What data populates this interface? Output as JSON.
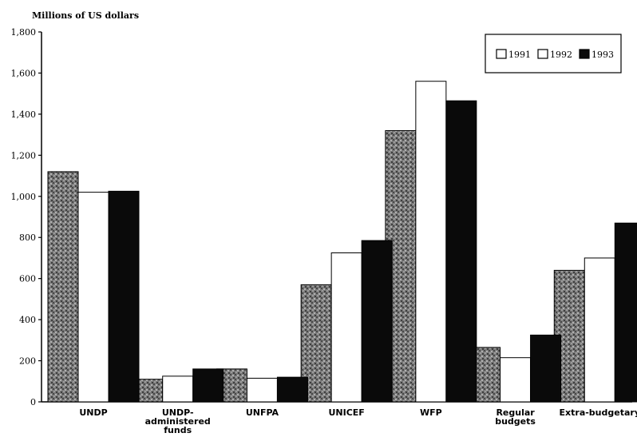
{
  "chart_data": {
    "type": "bar",
    "ylabel": "Millions of US dollars",
    "ylim": [
      0,
      1800
    ],
    "yticks": [
      0,
      200,
      400,
      600,
      800,
      1000,
      1200,
      1400,
      1600,
      1800
    ],
    "ytick_labels": [
      "0",
      "200",
      "400",
      "600",
      "800",
      "1,000",
      "1,200",
      "1,400",
      "1,600",
      "1,800"
    ],
    "categories": [
      [
        "UNDP"
      ],
      [
        "UNDP-",
        "administered",
        "funds"
      ],
      [
        "UNFPA"
      ],
      [
        "UNICEF"
      ],
      [
        "WFP"
      ],
      [
        "Regular",
        "budgets"
      ],
      [
        "Extra-budgetary"
      ]
    ],
    "series": [
      {
        "name": "1991",
        "pattern": "stipple",
        "values": [
          1120,
          110,
          160,
          570,
          1320,
          265,
          640
        ]
      },
      {
        "name": "1992",
        "pattern": "white",
        "values": [
          1020,
          125,
          115,
          725,
          1560,
          215,
          700
        ]
      },
      {
        "name": "1993",
        "pattern": "black",
        "values": [
          1025,
          160,
          120,
          785,
          1465,
          325,
          870
        ]
      }
    ],
    "legend_position": "top-right",
    "grid": false
  },
  "colors": {
    "stipple_dark": "#555555",
    "stipple_light": "#a8a8a8",
    "white_bar": "#ffffff",
    "black_bar": "#0a0a0a",
    "axis": "#000000"
  }
}
